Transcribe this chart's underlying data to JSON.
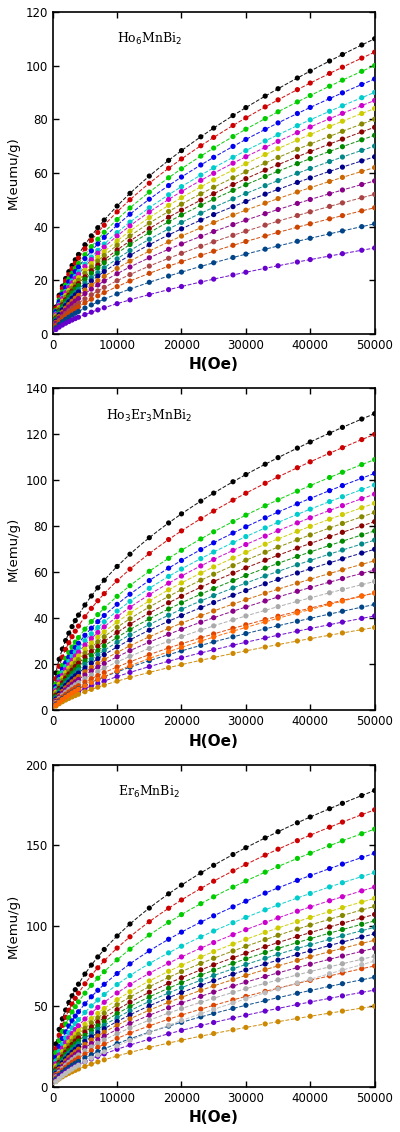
{
  "subplots": [
    {
      "label": "Ho$_6$MnBi$_2$",
      "ylabel": "M(eumu/g)",
      "ylim": [
        0,
        120
      ],
      "yticks": [
        0,
        20,
        40,
        60,
        80,
        100,
        120
      ],
      "curves": [
        {
          "M50k": 110,
          "alpha": 0.52,
          "color": "#000000"
        },
        {
          "M50k": 105,
          "alpha": 0.52,
          "color": "#cc0000"
        },
        {
          "M50k": 100,
          "alpha": 0.53,
          "color": "#00cc00"
        },
        {
          "M50k": 95,
          "alpha": 0.53,
          "color": "#0000ee"
        },
        {
          "M50k": 90,
          "alpha": 0.54,
          "color": "#00cccc"
        },
        {
          "M50k": 87,
          "alpha": 0.54,
          "color": "#cc00cc"
        },
        {
          "M50k": 84,
          "alpha": 0.55,
          "color": "#cccc00"
        },
        {
          "M50k": 80,
          "alpha": 0.55,
          "color": "#888800"
        },
        {
          "M50k": 77,
          "alpha": 0.56,
          "color": "#880000"
        },
        {
          "M50k": 74,
          "alpha": 0.56,
          "color": "#008800"
        },
        {
          "M50k": 70,
          "alpha": 0.57,
          "color": "#008888"
        },
        {
          "M50k": 66,
          "alpha": 0.57,
          "color": "#000088"
        },
        {
          "M50k": 62,
          "alpha": 0.58,
          "color": "#cc6600"
        },
        {
          "M50k": 57,
          "alpha": 0.58,
          "color": "#880088"
        },
        {
          "M50k": 52,
          "alpha": 0.6,
          "color": "#aa4444"
        },
        {
          "M50k": 47,
          "alpha": 0.61,
          "color": "#cc4400"
        },
        {
          "M50k": 41,
          "alpha": 0.63,
          "color": "#004488"
        },
        {
          "M50k": 32,
          "alpha": 0.65,
          "color": "#6600cc"
        }
      ]
    },
    {
      "label": "Ho$_3$Er$_3$MnBi$_2$",
      "ylabel": "M(emu/g)",
      "ylim": [
        0,
        140
      ],
      "yticks": [
        0,
        20,
        40,
        60,
        80,
        100,
        120,
        140
      ],
      "curves": [
        {
          "M50k": 129,
          "alpha": 0.45,
          "color": "#000000"
        },
        {
          "M50k": 120,
          "alpha": 0.47,
          "color": "#cc0000"
        },
        {
          "M50k": 109,
          "alpha": 0.49,
          "color": "#00cc00"
        },
        {
          "M50k": 103,
          "alpha": 0.5,
          "color": "#0000ee"
        },
        {
          "M50k": 98,
          "alpha": 0.51,
          "color": "#00cccc"
        },
        {
          "M50k": 94,
          "alpha": 0.52,
          "color": "#cc00cc"
        },
        {
          "M50k": 90,
          "alpha": 0.53,
          "color": "#cccc00"
        },
        {
          "M50k": 86,
          "alpha": 0.54,
          "color": "#888800"
        },
        {
          "M50k": 82,
          "alpha": 0.55,
          "color": "#880000"
        },
        {
          "M50k": 78,
          "alpha": 0.56,
          "color": "#008800"
        },
        {
          "M50k": 74,
          "alpha": 0.57,
          "color": "#008888"
        },
        {
          "M50k": 70,
          "alpha": 0.58,
          "color": "#000088"
        },
        {
          "M50k": 65,
          "alpha": 0.59,
          "color": "#cc6600"
        },
        {
          "M50k": 61,
          "alpha": 0.6,
          "color": "#880088"
        },
        {
          "M50k": 56,
          "alpha": 0.61,
          "color": "#aaaaaa"
        },
        {
          "M50k": 51,
          "alpha": 0.62,
          "color": "#dd4400"
        },
        {
          "M50k": 46,
          "alpha": 0.63,
          "color": "#004488"
        },
        {
          "M50k": 41,
          "alpha": 0.64,
          "color": "#6600cc"
        },
        {
          "M50k": 36,
          "alpha": 0.65,
          "color": "#cc8800"
        },
        {
          "M50k": 51,
          "alpha": 0.68,
          "color": "#ff6600"
        }
      ]
    },
    {
      "label": "Er$_6$MnBi$_2$",
      "ylabel": "M(emu/g)",
      "ylim": [
        0,
        200
      ],
      "yticks": [
        0,
        50,
        100,
        150,
        200
      ],
      "curves": [
        {
          "M50k": 184,
          "alpha": 0.42,
          "color": "#000000"
        },
        {
          "M50k": 172,
          "alpha": 0.43,
          "color": "#cc0000"
        },
        {
          "M50k": 160,
          "alpha": 0.44,
          "color": "#00cc00"
        },
        {
          "M50k": 145,
          "alpha": 0.45,
          "color": "#0000ee"
        },
        {
          "M50k": 133,
          "alpha": 0.46,
          "color": "#00cccc"
        },
        {
          "M50k": 124,
          "alpha": 0.47,
          "color": "#cc00cc"
        },
        {
          "M50k": 117,
          "alpha": 0.48,
          "color": "#cccc00"
        },
        {
          "M50k": 112,
          "alpha": 0.49,
          "color": "#888800"
        },
        {
          "M50k": 107,
          "alpha": 0.5,
          "color": "#880000"
        },
        {
          "M50k": 103,
          "alpha": 0.51,
          "color": "#008800"
        },
        {
          "M50k": 99,
          "alpha": 0.52,
          "color": "#008888"
        },
        {
          "M50k": 95,
          "alpha": 0.53,
          "color": "#000088"
        },
        {
          "M50k": 91,
          "alpha": 0.54,
          "color": "#cc6600"
        },
        {
          "M50k": 86,
          "alpha": 0.55,
          "color": "#880088"
        },
        {
          "M50k": 81,
          "alpha": 0.56,
          "color": "#aaaaaa"
        },
        {
          "M50k": 75,
          "alpha": 0.57,
          "color": "#dd4400"
        },
        {
          "M50k": 68,
          "alpha": 0.58,
          "color": "#004488"
        },
        {
          "M50k": 60,
          "alpha": 0.59,
          "color": "#6600cc"
        },
        {
          "M50k": 50,
          "alpha": 0.6,
          "color": "#cc8800"
        },
        {
          "M50k": 78,
          "alpha": 0.7,
          "color": "#bbbbbb"
        }
      ]
    }
  ],
  "xlabel": "H(Oe)",
  "background": "#ffffff",
  "H_scatter": [
    500,
    1000,
    1500,
    2000,
    2500,
    3000,
    3500,
    4000,
    5000,
    6000,
    7000,
    8000,
    10000,
    12000,
    15000,
    18000,
    20000,
    23000,
    25000,
    28000,
    30000,
    33000,
    35000,
    38000,
    40000,
    43000,
    45000,
    48000,
    50000
  ]
}
